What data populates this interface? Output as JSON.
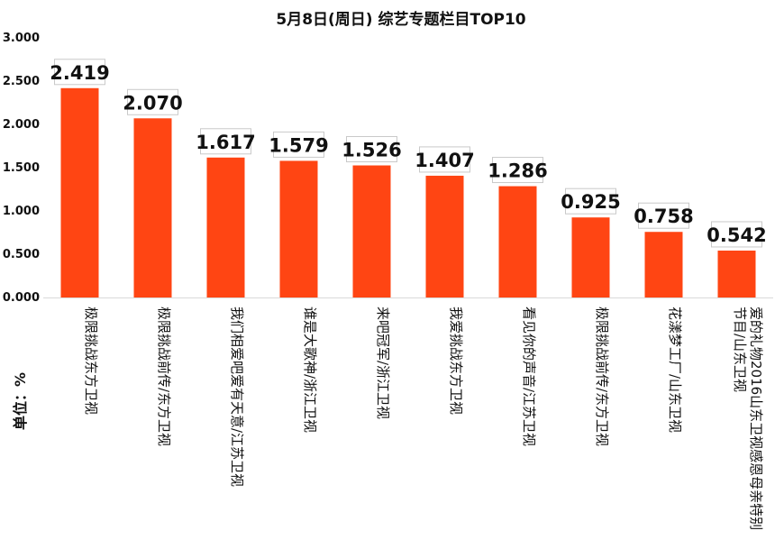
{
  "chart_data": {
    "type": "bar",
    "title": "5月8日(周日)  综艺专题栏目TOP10",
    "ylabel": "单位：%",
    "ylim": [
      0,
      3
    ],
    "yticks": [
      "0.000",
      "0.500",
      "1.000",
      "1.500",
      "2.000",
      "2.500",
      "3.000"
    ],
    "grid": false,
    "legend": "none",
    "bar_color": "#FF4513",
    "categories": [
      "极限挑战东方卫视",
      "极限挑战前传东方卫视",
      "我们相爱吧爱有天意江苏卫视",
      "谁是大歌神浙江卫视",
      "来吧冠军浙江卫视",
      "我爱挑战东方卫视",
      "看见你的声音江苏卫视",
      "极限挑战前传东方卫视",
      "花漾梦工厂山东卫视",
      "爱的礼物2016山东卫视感恩母亲特别节目山东卫视"
    ],
    "category_lines": [
      [
        "极限挑战东方卫视"
      ],
      [
        "极限挑战前传/东方卫视"
      ],
      [
        "我们相爱吧爱有天意/江苏卫视"
      ],
      [
        "谁是大歌神/浙江卫视"
      ],
      [
        "来吧冠军/浙江卫视"
      ],
      [
        "我爱挑战东方卫视"
      ],
      [
        "看见你的声音/江苏卫视"
      ],
      [
        "极限挑战前传/东方卫视"
      ],
      [
        "花漾梦工厂/山东卫视"
      ],
      [
        "爱的礼物2016山东卫视感恩母亲特别",
        "节目/山东卫视"
      ]
    ],
    "values": [
      2.419,
      2.07,
      1.617,
      1.579,
      1.526,
      1.407,
      1.286,
      0.925,
      0.758,
      0.542
    ],
    "value_labels": [
      "2.419",
      "2.070",
      "1.617",
      "1.579",
      "1.526",
      "1.407",
      "1.286",
      "0.925",
      "0.758",
      "0.542"
    ]
  }
}
